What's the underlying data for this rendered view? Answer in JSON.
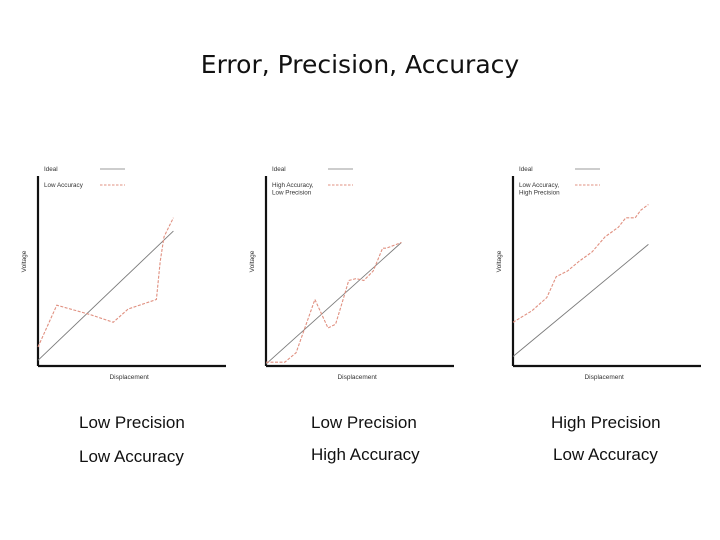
{
  "title": "Error, Precision, Accuracy",
  "colors": {
    "axis": "#111111",
    "ideal": "#7a7a7a",
    "measured": "#e09080"
  },
  "captions": [
    {
      "precision": "Low Precision",
      "accuracy": "Low Accuracy"
    },
    {
      "precision": "Low Precision",
      "accuracy": "High Accuracy"
    },
    {
      "precision": "High Precision",
      "accuracy": "Low Accuracy"
    }
  ],
  "chart_data": [
    {
      "type": "line",
      "xlabel": "Displacement",
      "ylabel": "Voltage",
      "legend_position": "top-left",
      "xlim": [
        0,
        100
      ],
      "ylim": [
        0,
        100
      ],
      "series": [
        {
          "name": "Ideal",
          "style": "solid",
          "x": [
            0,
            72
          ],
          "y": [
            3,
            71
          ]
        },
        {
          "name": "Low Accuracy",
          "style": "dashed",
          "x": [
            0,
            10,
            28,
            40,
            48,
            63,
            65,
            67,
            70,
            72
          ],
          "y": [
            10,
            32,
            27,
            23,
            30,
            35,
            55,
            68,
            74,
            78
          ]
        }
      ]
    },
    {
      "type": "line",
      "xlabel": "Displacement",
      "ylabel": "Voltage",
      "legend_position": "top-left",
      "xlim": [
        0,
        100
      ],
      "ylim": [
        0,
        100
      ],
      "series": [
        {
          "name": "Ideal",
          "style": "solid",
          "x": [
            0,
            72
          ],
          "y": [
            1,
            65
          ]
        },
        {
          "name": "High Accuracy, Low Precision",
          "style": "dashed",
          "x": [
            0,
            10,
            16,
            26,
            33,
            37,
            41,
            44,
            48,
            52,
            57,
            62,
            64,
            72
          ],
          "y": [
            2,
            2,
            7,
            35,
            20,
            22,
            35,
            45,
            46,
            45,
            50,
            62,
            62,
            65
          ]
        }
      ]
    },
    {
      "type": "line",
      "xlabel": "Displacement",
      "ylabel": "Voltage",
      "legend_position": "top-left",
      "xlim": [
        0,
        100
      ],
      "ylim": [
        0,
        100
      ],
      "series": [
        {
          "name": "Ideal",
          "style": "solid",
          "x": [
            0,
            72
          ],
          "y": [
            5,
            64
          ]
        },
        {
          "name": "Low Accuracy, High Precision",
          "style": "dashed",
          "x": [
            0,
            10,
            18,
            23,
            29,
            35,
            42,
            49,
            56,
            60,
            65,
            68,
            72
          ],
          "y": [
            23,
            29,
            36,
            47,
            50,
            55,
            60,
            68,
            73,
            78,
            78,
            82,
            85
          ]
        }
      ]
    }
  ]
}
